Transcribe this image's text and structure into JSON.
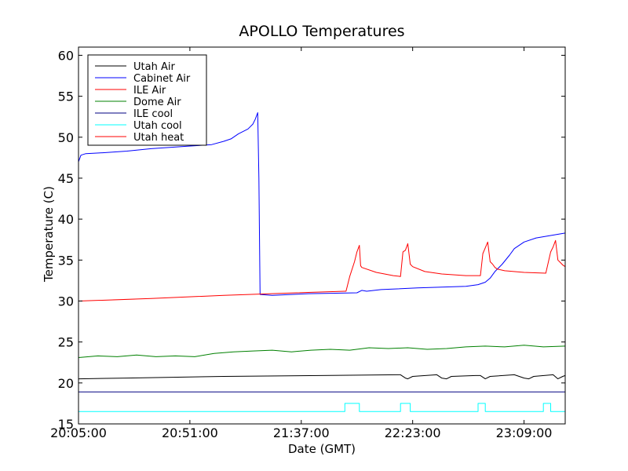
{
  "chart_data": {
    "type": "line",
    "title": "APOLLO Temperatures",
    "xlabel": "Date (GMT)",
    "ylabel": "Temperature (C)",
    "xlim": [
      0,
      201
    ],
    "ylim": [
      15,
      61
    ],
    "grid": false,
    "legend_position": "top-left",
    "x_ticks": [
      {
        "value": 0,
        "label": "20:05:00"
      },
      {
        "value": 46,
        "label": "20:51:00"
      },
      {
        "value": 92,
        "label": "21:37:00"
      },
      {
        "value": 138,
        "label": "22:23:00"
      },
      {
        "value": 184,
        "label": "23:09:00"
      }
    ],
    "y_ticks": [
      15,
      20,
      25,
      30,
      35,
      40,
      45,
      50,
      55,
      60
    ],
    "series": [
      {
        "name": "Utah Air",
        "color": "#000000",
        "x": [
          0,
          20,
          60,
          100,
          132,
          133,
          135,
          136,
          138,
          148,
          150,
          152,
          154,
          164,
          166,
          168,
          170,
          180,
          184,
          186,
          188,
          196,
          198,
          200,
          201
        ],
        "y": [
          20.5,
          20.6,
          20.8,
          20.9,
          21.0,
          21.0,
          20.6,
          20.5,
          20.8,
          21.0,
          20.6,
          20.5,
          20.8,
          20.9,
          20.9,
          20.5,
          20.8,
          21.0,
          20.6,
          20.5,
          20.8,
          21.0,
          20.5,
          20.8,
          20.9
        ]
      },
      {
        "name": "Cabinet Air",
        "color": "#0000ff",
        "x": [
          0,
          1,
          3,
          10,
          20,
          30,
          45,
          55,
          60,
          63,
          66,
          70,
          72,
          73,
          74,
          74.5,
          75,
          80,
          95,
          115,
          117,
          119,
          125,
          140,
          160,
          165,
          168,
          170,
          172,
          175,
          178,
          180,
          184,
          189,
          195,
          201
        ],
        "y": [
          47.0,
          47.8,
          48.0,
          48.1,
          48.3,
          48.6,
          48.9,
          49.1,
          49.5,
          49.8,
          50.4,
          51.0,
          51.6,
          52.2,
          53.0,
          45.0,
          30.8,
          30.7,
          30.9,
          31.0,
          31.3,
          31.2,
          31.4,
          31.6,
          31.8,
          32.0,
          32.3,
          32.8,
          33.6,
          34.5,
          35.6,
          36.4,
          37.2,
          37.7,
          38.0,
          38.3
        ]
      },
      {
        "name": "ILE Air",
        "color": "#ff0000",
        "x": [
          0,
          30,
          60,
          90,
          110,
          110.5,
          112,
          114,
          115,
          116,
          116.5,
          117,
          123,
          130,
          133,
          134,
          135,
          136,
          137,
          138,
          143,
          150,
          160,
          165,
          166,
          167,
          168,
          169,
          170,
          171,
          172,
          173,
          176,
          184,
          193,
          195,
          196,
          197,
          198,
          199,
          200,
          201
        ],
        "y": [
          30.0,
          30.3,
          30.7,
          31.0,
          31.2,
          31.2,
          33.0,
          34.8,
          36.0,
          36.8,
          34.3,
          34.1,
          33.5,
          33.1,
          33.0,
          36.0,
          36.2,
          37.0,
          34.5,
          34.2,
          33.6,
          33.3,
          33.1,
          33.1,
          33.1,
          35.8,
          36.5,
          37.2,
          34.8,
          34.5,
          34.1,
          33.9,
          33.7,
          33.5,
          33.4,
          36.0,
          36.6,
          37.4,
          35.0,
          34.7,
          34.4,
          34.2
        ]
      },
      {
        "name": "Dome Air",
        "color": "#008000",
        "x": [
          0,
          8,
          16,
          24,
          32,
          40,
          48,
          56,
          64,
          72,
          80,
          88,
          96,
          104,
          112,
          120,
          128,
          136,
          144,
          152,
          160,
          168,
          176,
          184,
          192,
          201
        ],
        "y": [
          23.1,
          23.3,
          23.2,
          23.4,
          23.2,
          23.3,
          23.2,
          23.6,
          23.8,
          23.9,
          24.0,
          23.8,
          24.0,
          24.1,
          24.0,
          24.3,
          24.2,
          24.3,
          24.1,
          24.2,
          24.4,
          24.5,
          24.4,
          24.6,
          24.4,
          24.5
        ]
      },
      {
        "name": "ILE cool",
        "color": "#000080",
        "x": [
          0,
          201
        ],
        "y": [
          18.9,
          18.9
        ]
      },
      {
        "name": "Utah cool",
        "color": "#00ffff",
        "x": [
          0,
          110,
          110,
          116,
          116,
          133,
          133,
          137,
          137,
          165,
          165,
          168,
          168,
          192,
          192,
          195,
          195,
          201
        ],
        "y": [
          16.5,
          16.5,
          17.5,
          17.5,
          16.5,
          16.5,
          17.5,
          17.5,
          16.5,
          16.5,
          17.5,
          17.5,
          16.5,
          16.5,
          17.5,
          17.5,
          16.5,
          16.5
        ]
      },
      {
        "name": "Utah heat",
        "color": "#ff0000",
        "x": [],
        "y": []
      }
    ]
  }
}
